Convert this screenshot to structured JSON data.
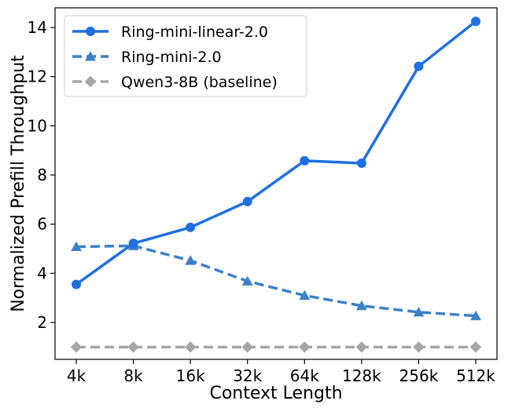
{
  "chart_data": {
    "type": "line",
    "xlabel": "Context Length",
    "ylabel": "Normalized Prefill Throughput",
    "categories": [
      "4k",
      "8k",
      "16k",
      "32k",
      "64k",
      "128k",
      "256k",
      "512k"
    ],
    "ylim": [
      0.5,
      14.8
    ],
    "yticks": [
      2,
      4,
      6,
      8,
      10,
      12,
      14
    ],
    "grid": false,
    "legend_position": "top-left",
    "series": [
      {
        "name": "Ring-mini-linear-2.0",
        "values": [
          3.55,
          5.22,
          5.87,
          6.92,
          8.58,
          8.48,
          12.42,
          14.25
        ],
        "color": "#1f6fe0",
        "line_style": "solid",
        "marker": "circle"
      },
      {
        "name": "Ring-mini-2.0",
        "values": [
          5.08,
          5.12,
          4.52,
          3.68,
          3.1,
          2.68,
          2.42,
          2.27
        ],
        "color": "#3d80c8",
        "line_style": "dashed",
        "marker": "triangle"
      },
      {
        "name": "Qwen3-8B (baseline)",
        "values": [
          1.0,
          1.0,
          1.0,
          1.0,
          1.0,
          1.0,
          1.0,
          1.0
        ],
        "color": "#a6a6a6",
        "line_style": "dashed",
        "marker": "diamond"
      }
    ]
  }
}
